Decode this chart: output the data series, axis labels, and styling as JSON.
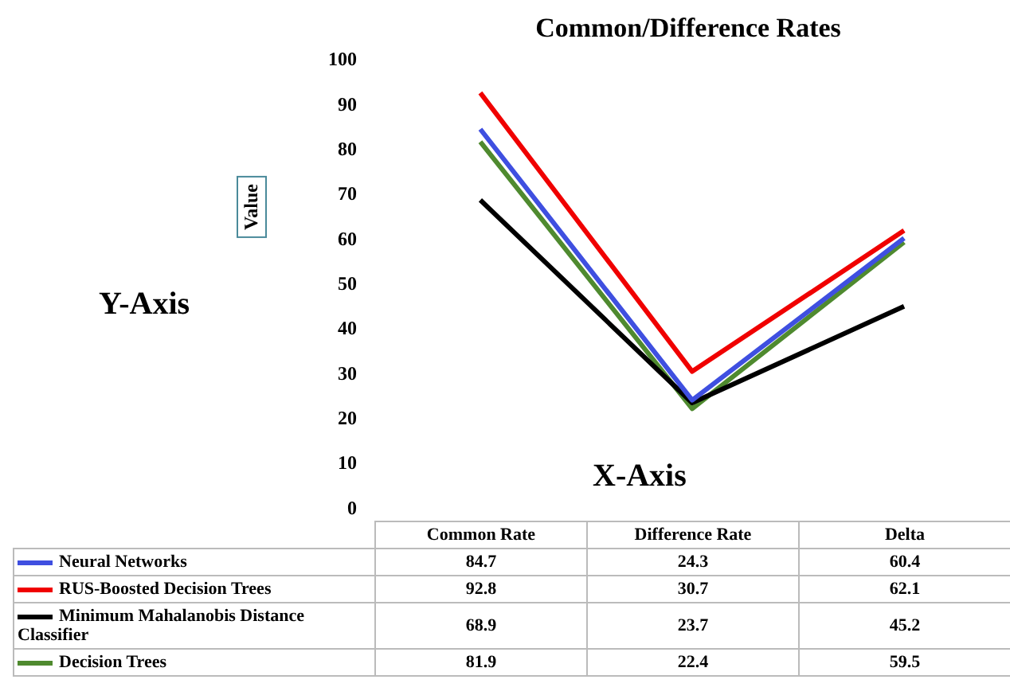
{
  "chart_data": {
    "type": "line",
    "title": "Common/Difference Rates",
    "xlabel": "X-Axis",
    "ylabel": "Value",
    "annotations": [
      "Y-Axis"
    ],
    "categories": [
      "Common Rate",
      "Difference Rate",
      "Delta"
    ],
    "series": [
      {
        "name": "Neural Networks",
        "color": "#3f4fe0",
        "values": [
          84.7,
          24.3,
          60.4
        ]
      },
      {
        "name": "RUS-Boosted Decision Trees",
        "color": "#f00000",
        "values": [
          92.8,
          30.7,
          62.1
        ]
      },
      {
        "name": "Minimum Mahalanobis Distance Classifier",
        "color": "#000000",
        "values": [
          68.9,
          23.7,
          45.2
        ]
      },
      {
        "name": "Decision Trees",
        "color": "#4f8a2f",
        "values": [
          81.9,
          22.4,
          59.5
        ]
      }
    ],
    "ylim": [
      0,
      100
    ],
    "yticks": [
      0,
      10,
      20,
      30,
      40,
      50,
      60,
      70,
      80,
      90,
      100
    ],
    "grid": false,
    "legend": "bottom",
    "data_labels": true,
    "marker": "none",
    "line_style": "solid"
  }
}
